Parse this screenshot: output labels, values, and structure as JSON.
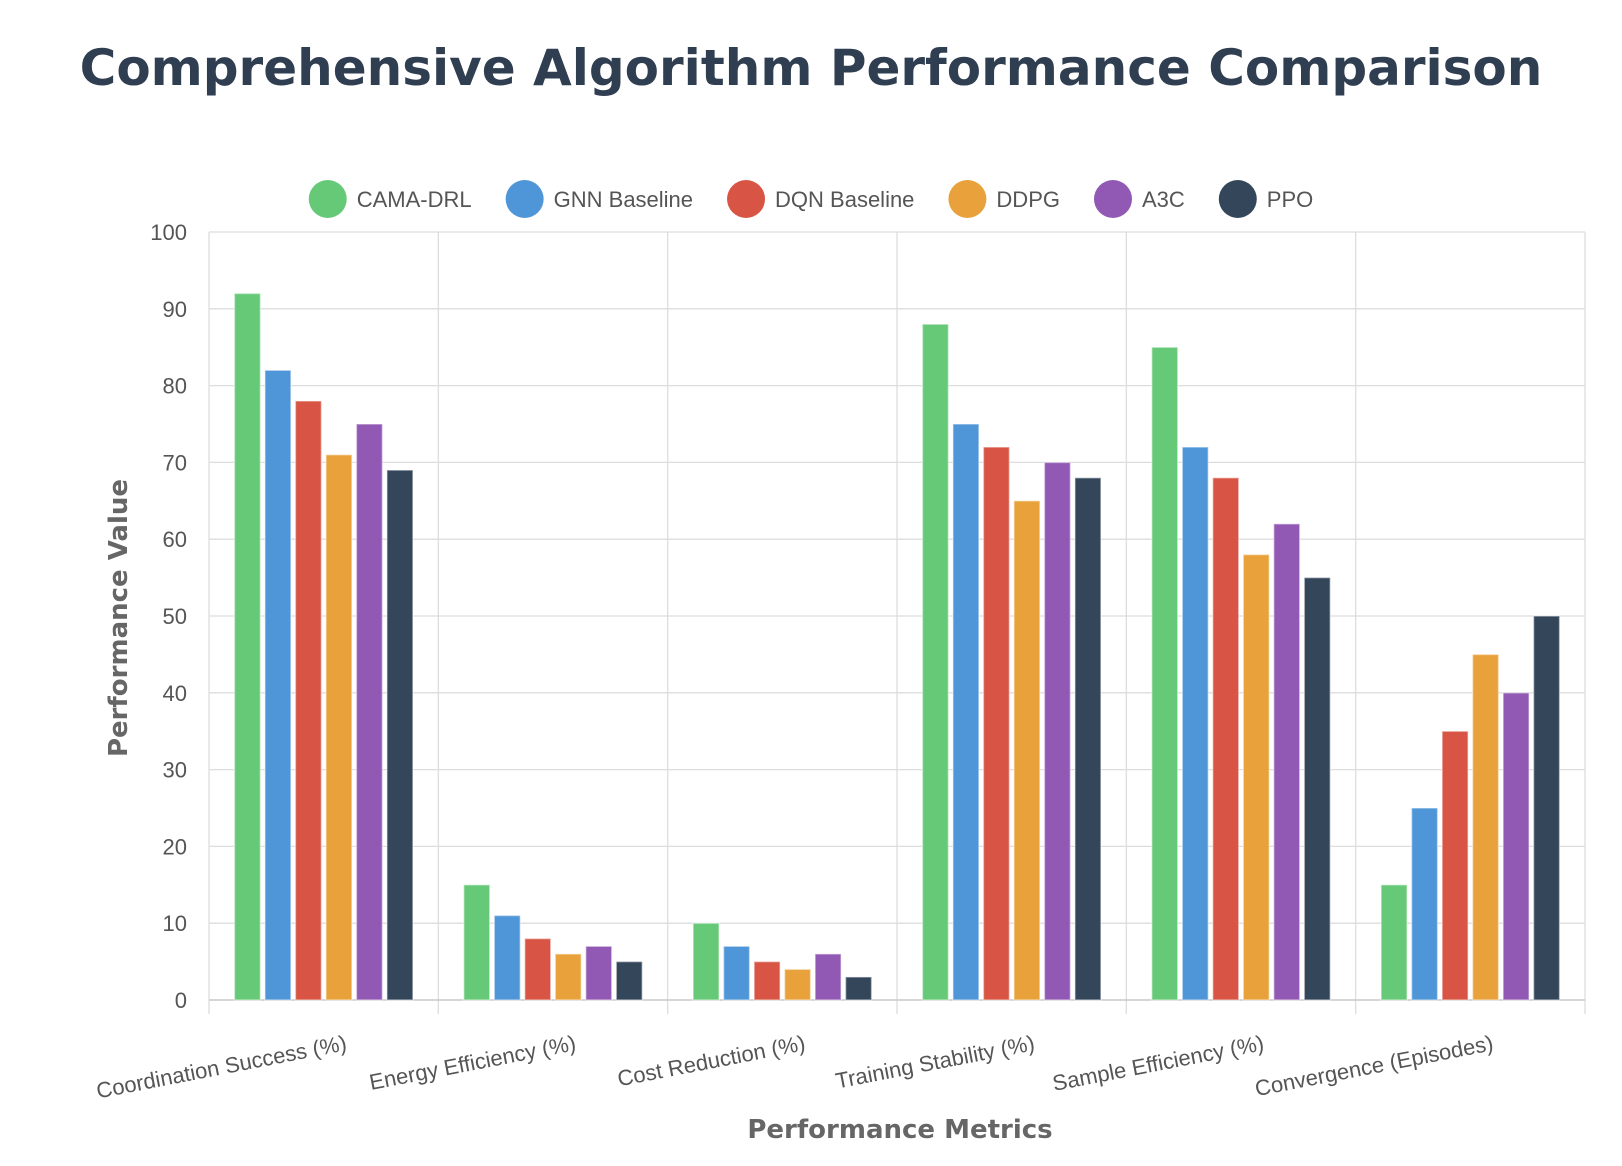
{
  "chart_data": {
    "type": "bar",
    "title": "Comprehensive Algorithm Performance Comparison",
    "xlabel": "Performance Metrics",
    "ylabel": "Performance Value",
    "ylim": [
      0,
      100
    ],
    "yticks": [
      0,
      10,
      20,
      30,
      40,
      50,
      60,
      70,
      80,
      90,
      100
    ],
    "grid": true,
    "legend_position": "top-center",
    "categories": [
      "Coordination Success (%)",
      "Energy Efficiency (%)",
      "Cost Reduction (%)",
      "Training Stability (%)",
      "Sample Efficiency (%)",
      "Convergence (Episodes)"
    ],
    "series": [
      {
        "name": "CAMA-DRL",
        "color": "#66c977",
        "values": [
          92,
          15,
          10,
          88,
          85,
          15
        ]
      },
      {
        "name": "GNN Baseline",
        "color": "#4f96d8",
        "values": [
          82,
          11,
          7,
          75,
          72,
          25
        ]
      },
      {
        "name": "DQN Baseline",
        "color": "#d85444",
        "values": [
          78,
          8,
          5,
          72,
          68,
          35
        ]
      },
      {
        "name": "DDPG",
        "color": "#e9a23b",
        "values": [
          71,
          6,
          4,
          65,
          58,
          45
        ]
      },
      {
        "name": "A3C",
        "color": "#9159b3",
        "values": [
          75,
          7,
          6,
          70,
          62,
          40
        ]
      },
      {
        "name": "PPO",
        "color": "#344659",
        "values": [
          69,
          5,
          3,
          68,
          55,
          50
        ]
      }
    ]
  }
}
